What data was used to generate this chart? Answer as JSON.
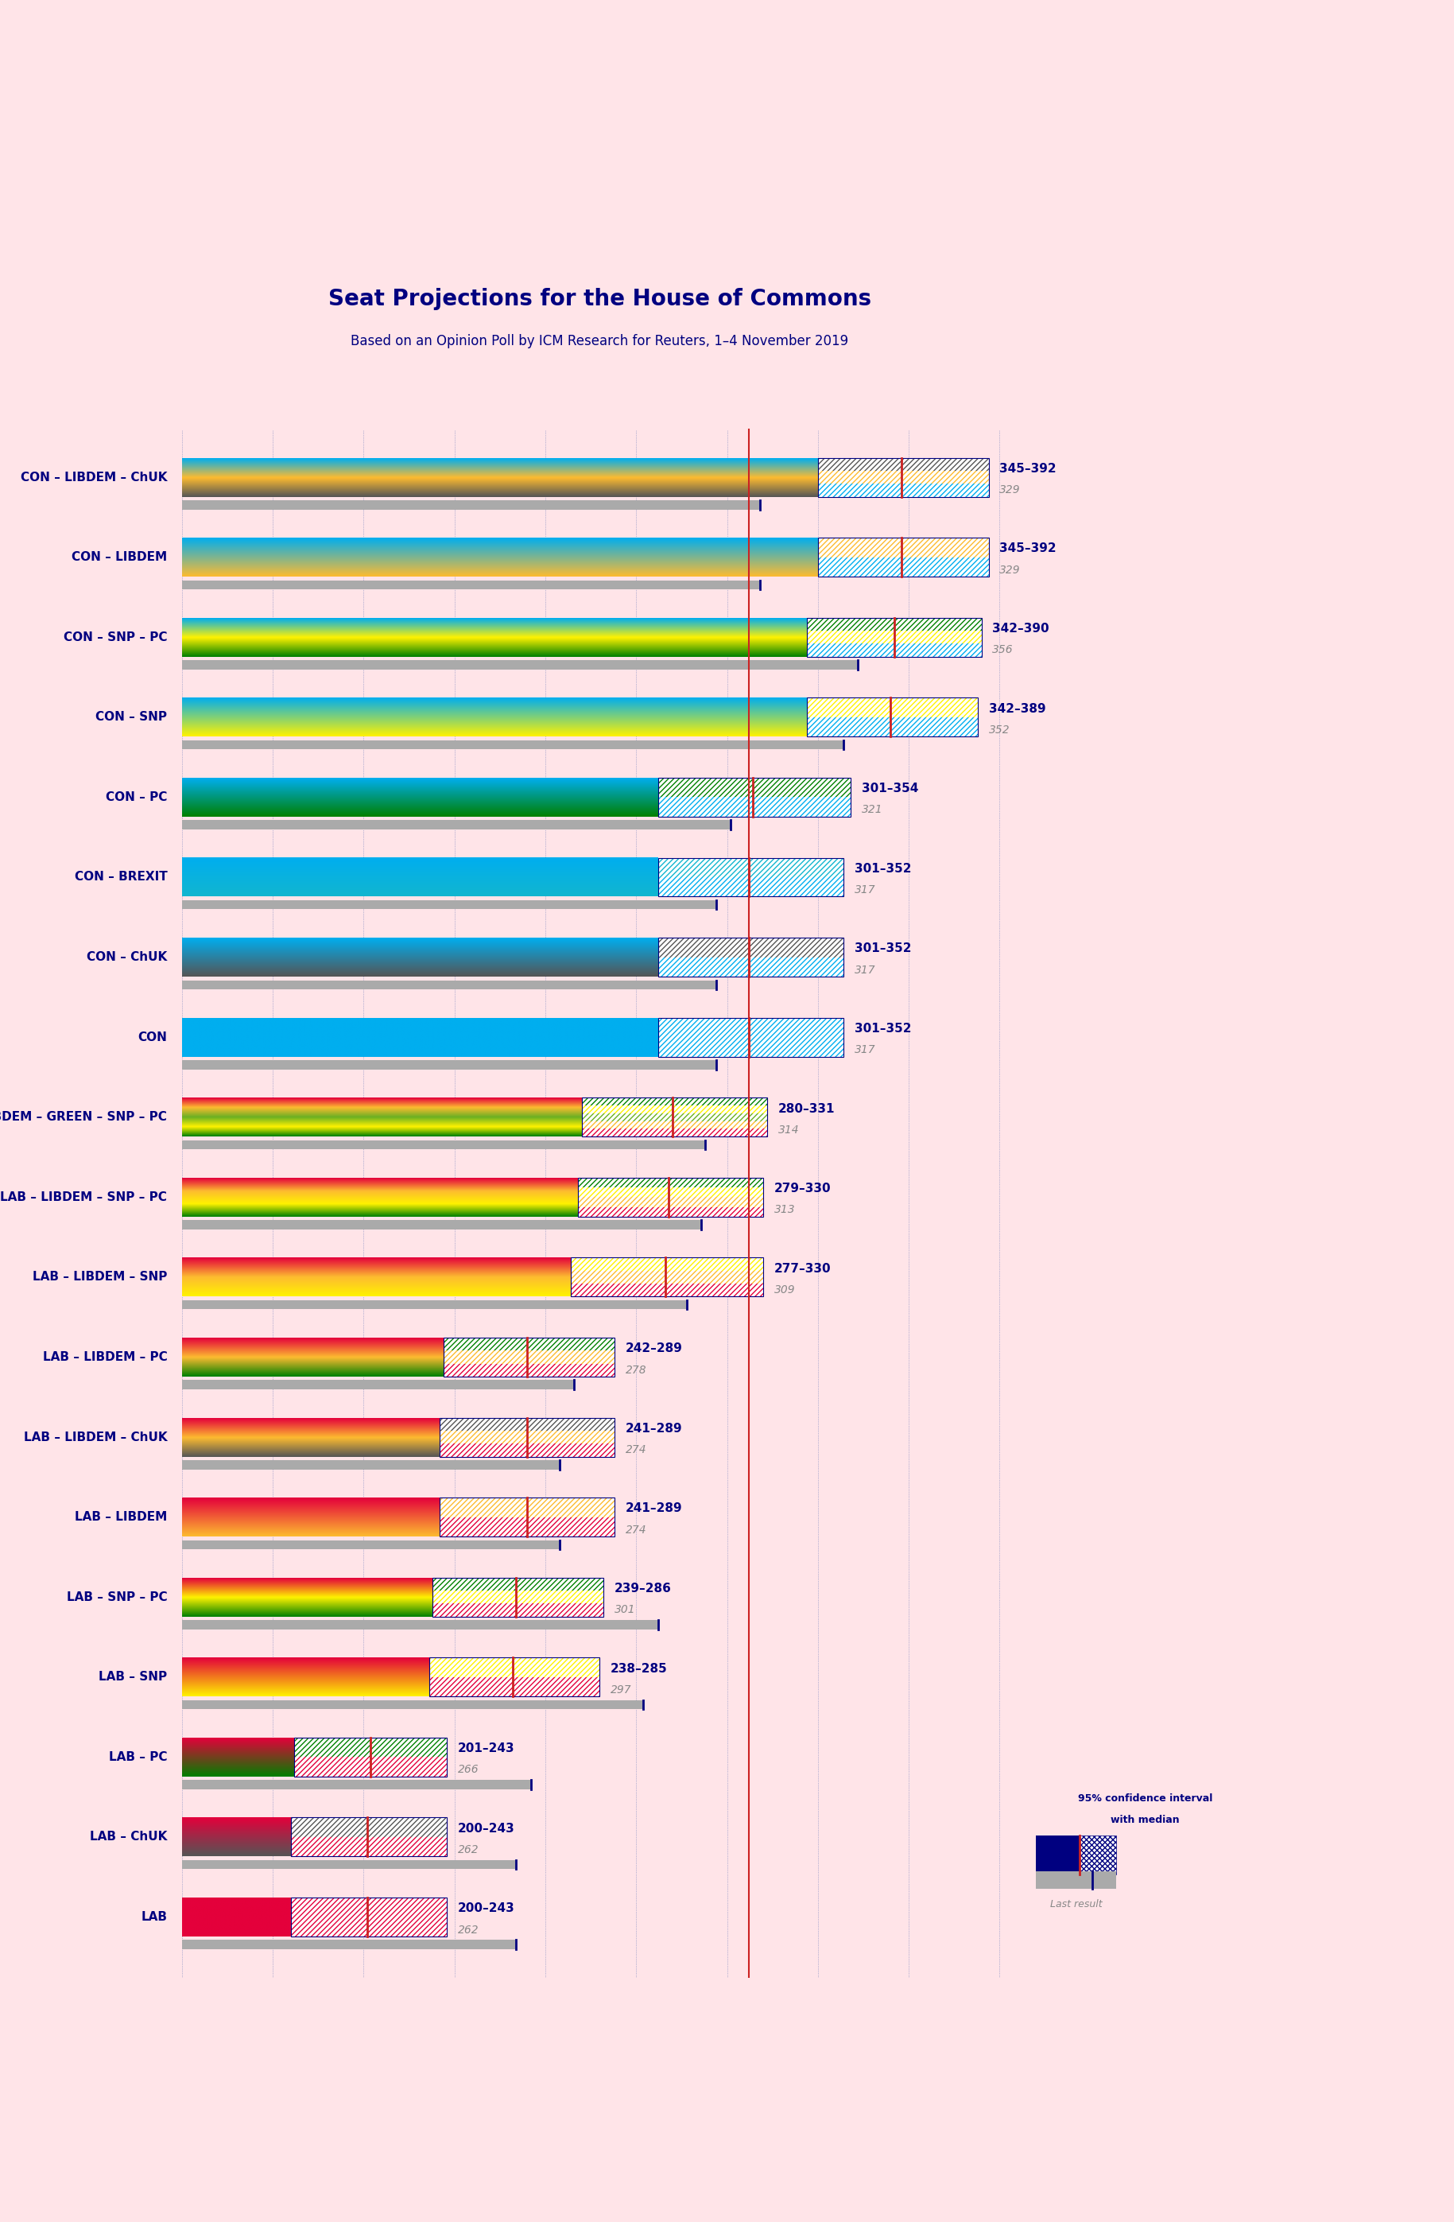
{
  "title": "Seat Projections for the House of Commons",
  "subtitle": "Based on an Opinion Poll by ICM Research for Reuters, 1–4 November 2019",
  "background_color": "#FFE4E8",
  "majority": 326,
  "xmin": 170,
  "xmax": 400,
  "coalitions": [
    {
      "label": "CON – LIBDEM – ChUK",
      "rl": 345,
      "rh": 392,
      "med": 368,
      "last": 329,
      "colors": [
        "#00AEEF",
        "#FDBB30",
        "#555555"
      ]
    },
    {
      "label": "CON – LIBDEM",
      "rl": 345,
      "rh": 392,
      "med": 368,
      "last": 329,
      "colors": [
        "#00AEEF",
        "#FDBB30"
      ]
    },
    {
      "label": "CON – SNP – PC",
      "rl": 342,
      "rh": 390,
      "med": 366,
      "last": 356,
      "colors": [
        "#00AEEF",
        "#FFF200",
        "#008000"
      ]
    },
    {
      "label": "CON – SNP",
      "rl": 342,
      "rh": 389,
      "med": 365,
      "last": 352,
      "colors": [
        "#00AEEF",
        "#FFF200"
      ]
    },
    {
      "label": "CON – PC",
      "rl": 301,
      "rh": 354,
      "med": 327,
      "last": 321,
      "colors": [
        "#00AEEF",
        "#008000"
      ]
    },
    {
      "label": "CON – BREXIT",
      "rl": 301,
      "rh": 352,
      "med": 326,
      "last": 317,
      "colors": [
        "#00AEEF",
        "#12B6CF"
      ]
    },
    {
      "label": "CON – ChUK",
      "rl": 301,
      "rh": 352,
      "med": 326,
      "last": 317,
      "colors": [
        "#00AEEF",
        "#555555"
      ]
    },
    {
      "label": "CON",
      "rl": 301,
      "rh": 352,
      "med": 326,
      "last": 317,
      "colors": [
        "#00AEEF"
      ]
    },
    {
      "label": "LAB – LIBDEM – GREEN – SNP – PC",
      "rl": 280,
      "rh": 331,
      "med": 305,
      "last": 314,
      "colors": [
        "#E4003B",
        "#FDBB30",
        "#6AB023",
        "#FFF200",
        "#008000"
      ]
    },
    {
      "label": "LAB – LIBDEM – SNP – PC",
      "rl": 279,
      "rh": 330,
      "med": 304,
      "last": 313,
      "colors": [
        "#E4003B",
        "#FDBB30",
        "#FFF200",
        "#008000"
      ]
    },
    {
      "label": "LAB – LIBDEM – SNP",
      "rl": 277,
      "rh": 330,
      "med": 303,
      "last": 309,
      "colors": [
        "#E4003B",
        "#FDBB30",
        "#FFF200"
      ]
    },
    {
      "label": "LAB – LIBDEM – PC",
      "rl": 242,
      "rh": 289,
      "med": 265,
      "last": 278,
      "colors": [
        "#E4003B",
        "#FDBB30",
        "#008000"
      ]
    },
    {
      "label": "LAB – LIBDEM – ChUK",
      "rl": 241,
      "rh": 289,
      "med": 265,
      "last": 274,
      "colors": [
        "#E4003B",
        "#FDBB30",
        "#555555"
      ]
    },
    {
      "label": "LAB – LIBDEM",
      "rl": 241,
      "rh": 289,
      "med": 265,
      "last": 274,
      "colors": [
        "#E4003B",
        "#FDBB30"
      ]
    },
    {
      "label": "LAB – SNP – PC",
      "rl": 239,
      "rh": 286,
      "med": 262,
      "last": 301,
      "colors": [
        "#E4003B",
        "#FFF200",
        "#008000"
      ]
    },
    {
      "label": "LAB – SNP",
      "rl": 238,
      "rh": 285,
      "med": 261,
      "last": 297,
      "colors": [
        "#E4003B",
        "#FFF200"
      ]
    },
    {
      "label": "LAB – PC",
      "rl": 201,
      "rh": 243,
      "med": 222,
      "last": 266,
      "colors": [
        "#E4003B",
        "#008000"
      ]
    },
    {
      "label": "LAB – ChUK",
      "rl": 200,
      "rh": 243,
      "med": 221,
      "last": 262,
      "colors": [
        "#E4003B",
        "#555555"
      ]
    },
    {
      "label": "LAB",
      "rl": 200,
      "rh": 243,
      "med": 221,
      "last": 262,
      "colors": [
        "#E4003B"
      ]
    }
  ]
}
